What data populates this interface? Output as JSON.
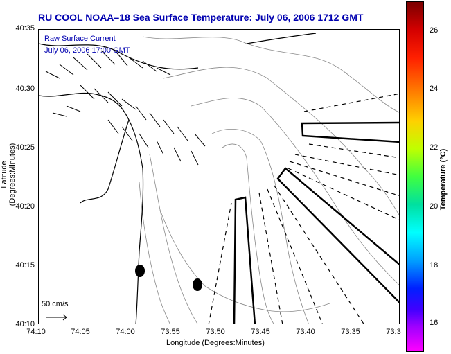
{
  "title": "RU COOL  NOAA–18  Sea Surface Temperature:  July 06, 2006 1712 GMT",
  "legend": {
    "line1": "Raw Surface Current",
    "line2": "July 06, 2006 17:00 GMT"
  },
  "scale_label": "50 cm/s",
  "axes": {
    "xlabel": "Longitude (Degrees:Minutes)",
    "ylabel": "Latitude (Degrees:Minutes)",
    "xticks": [
      "74:10",
      "74:05",
      "74:00",
      "73:55",
      "73:50",
      "73:45",
      "73:40",
      "73:35",
      "73:3"
    ],
    "yticks": [
      "40:35",
      "40:30",
      "40:25",
      "40:20",
      "40:15",
      "40:10"
    ]
  },
  "colorbar": {
    "label": "Temperature (°C)",
    "ticks": [
      "26",
      "24",
      "22",
      "20",
      "18",
      "16"
    ]
  },
  "colors": {
    "title": "#0000b0",
    "coast": "#000000",
    "bathymetry": "#888888"
  }
}
